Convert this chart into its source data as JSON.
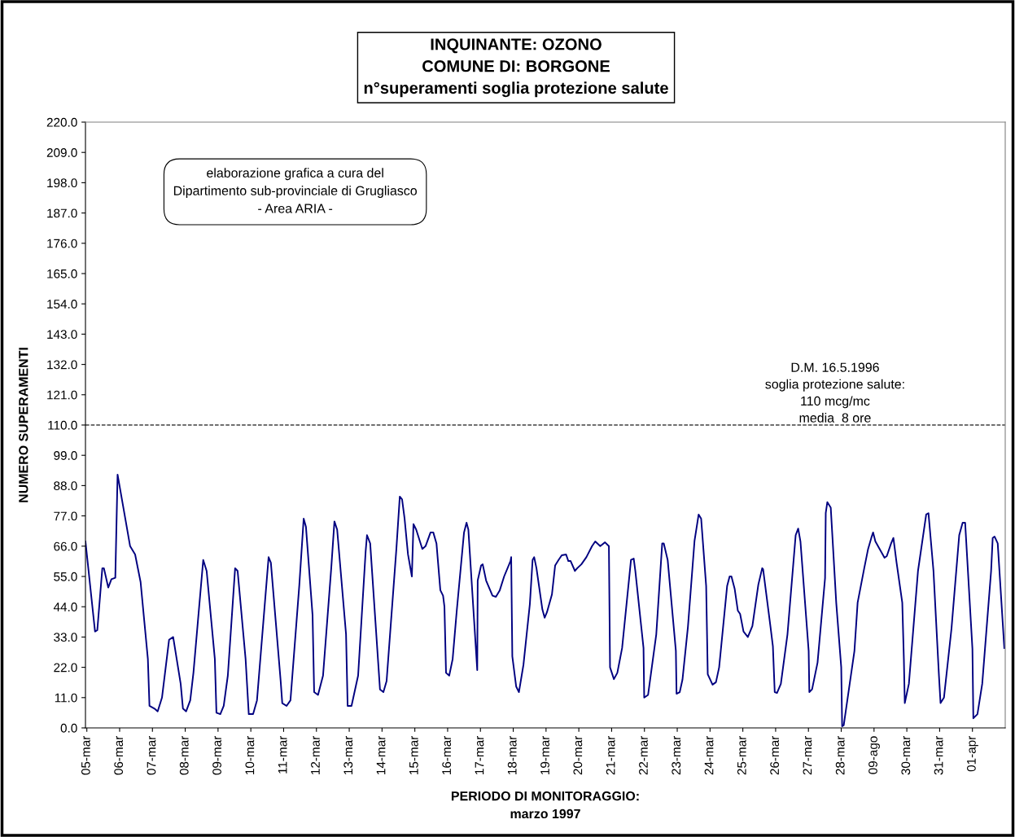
{
  "chart_data": {
    "type": "line",
    "title": "INQUINANTE: OZONO\nCOMUNE DI: BORGONE\nn°superamenti soglia protezione salute",
    "xlabel": "PERIODO DI MONITORAGGIO:\nmarzo 1997",
    "ylabel": "NUMERO SUPERAMENTI",
    "annotations": [
      "elaborazione grafica a cura del\nDipartimento sub-provinciale di Grugliasco\n- Area ARIA -"
    ],
    "ref_lines": [
      {
        "axis": "y",
        "value": 110,
        "label": "D.M. 16.5.1996\nsoglia protezione salute:\n110 mcg/mc\nmedia  8 ore",
        "color": "#404040",
        "line_style": "dashed"
      }
    ],
    "xlim": [
      "1997-03-04T23:00",
      "1997-04-02T00:00"
    ],
    "ylim": [
      0,
      220
    ],
    "xticks": [
      {
        "value": "1997-03-05",
        "label": "05-mar"
      },
      {
        "value": "1997-03-06",
        "label": "06-mar"
      },
      {
        "value": "1997-03-07",
        "label": "07-mar"
      },
      {
        "value": "1997-03-08",
        "label": "08-mar"
      },
      {
        "value": "1997-03-09",
        "label": "09-mar"
      },
      {
        "value": "1997-03-10",
        "label": "10-mar"
      },
      {
        "value": "1997-03-11",
        "label": "11-mar"
      },
      {
        "value": "1997-03-12",
        "label": "12-mar"
      },
      {
        "value": "1997-03-13",
        "label": "13-mar"
      },
      {
        "value": "1997-03-14",
        "label": "14-mar"
      },
      {
        "value": "1997-03-15",
        "label": "15-mar"
      },
      {
        "value": "1997-03-16",
        "label": "16-mar"
      },
      {
        "value": "1997-03-17",
        "label": "17-mar"
      },
      {
        "value": "1997-03-18",
        "label": "18-mar"
      },
      {
        "value": "1997-03-19",
        "label": "19-mar"
      },
      {
        "value": "1997-03-20",
        "label": "20-mar"
      },
      {
        "value": "1997-03-21",
        "label": "21-mar"
      },
      {
        "value": "1997-03-22",
        "label": "22-mar"
      },
      {
        "value": "1997-03-23",
        "label": "23-mar"
      },
      {
        "value": "1997-03-24",
        "label": "24-mar"
      },
      {
        "value": "1997-03-25",
        "label": "25-mar"
      },
      {
        "value": "1997-03-26",
        "label": "26-mar"
      },
      {
        "value": "1997-03-27",
        "label": "27-mar"
      },
      {
        "value": "1997-03-28",
        "label": "28-mar"
      },
      {
        "value": "1997-03-29",
        "label": "09-ago"
      },
      {
        "value": "1997-03-30",
        "label": "30-mar"
      },
      {
        "value": "1997-03-31",
        "label": "31-mar"
      },
      {
        "value": "1997-04-01",
        "label": "01-apr"
      }
    ],
    "yticks": [
      {
        "value": 0,
        "label": "0.0"
      },
      {
        "value": 11,
        "label": "11.0"
      },
      {
        "value": 22,
        "label": "22.0"
      },
      {
        "value": 33,
        "label": "33.0"
      },
      {
        "value": 44,
        "label": "44.0"
      },
      {
        "value": 55,
        "label": "55.0"
      },
      {
        "value": 66,
        "label": "66.0"
      },
      {
        "value": 77,
        "label": "77.0"
      },
      {
        "value": 88,
        "label": "88.0"
      },
      {
        "value": 99,
        "label": "99.0"
      },
      {
        "value": 110,
        "label": "110.0"
      },
      {
        "value": 121,
        "label": "121.0"
      },
      {
        "value": 132,
        "label": "132.0"
      },
      {
        "value": 143,
        "label": "143.0"
      },
      {
        "value": 154,
        "label": "154.0"
      },
      {
        "value": 165,
        "label": "165.0"
      },
      {
        "value": 176,
        "label": "176.0"
      },
      {
        "value": 187,
        "label": "187.0"
      },
      {
        "value": 198,
        "label": "198.0"
      },
      {
        "value": 209,
        "label": "209.0"
      },
      {
        "value": 220,
        "label": "220.0"
      }
    ],
    "grid": false,
    "legend": false,
    "marker": "none",
    "line_style": "solid",
    "series": [
      {
        "color": "#000080",
        "x": [
          "1997-03-04T23:00",
          "1997-03-05T06:00",
          "1997-03-05T07:40",
          "1997-03-05T11:20",
          "1997-03-05T12:30",
          "1997-03-05T15:40",
          "1997-03-05T18:00",
          "1997-03-05T20:50",
          "1997-03-05T22:30",
          "1997-03-06T04:30",
          "1997-03-06T07:40",
          "1997-03-06T11:20",
          "1997-03-06T15:20",
          "1997-03-06T20:40",
          "1997-03-06T21:50",
          "1997-03-07T01:30",
          "1997-03-07T03:50",
          "1997-03-07T07:00",
          "1997-03-07T12:10",
          "1997-03-07T15:10",
          "1997-03-07T20:40",
          "1997-03-07T22:20",
          "1997-03-08T00:40",
          "1997-03-08T03:40",
          "1997-03-08T06:00",
          "1997-03-08T13:10",
          "1997-03-08T15:40",
          "1997-03-08T21:40",
          "1997-03-08T22:50",
          "1997-03-09T01:40",
          "1997-03-09T04:10",
          "1997-03-09T07:10",
          "1997-03-09T12:30",
          "1997-03-09T14:20",
          "1997-03-09T20:10",
          "1997-03-09T22:30",
          "1997-03-10T01:40",
          "1997-03-10T04:30",
          "1997-03-10T13:00",
          "1997-03-10T14:40",
          "1997-03-10T21:50",
          "1997-03-10T23:00",
          "1997-03-11T02:10",
          "1997-03-11T05:00",
          "1997-03-11T11:30",
          "1997-03-11T14:40",
          "1997-03-11T16:20",
          "1997-03-11T21:10",
          "1997-03-11T22:20",
          "1997-03-12T01:10",
          "1997-03-12T04:50",
          "1997-03-12T10:50",
          "1997-03-12T13:10",
          "1997-03-12T15:10",
          "1997-03-12T21:40",
          "1997-03-12T22:50",
          "1997-03-13T01:40",
          "1997-03-13T06:30",
          "1997-03-13T12:00",
          "1997-03-13T13:00",
          "1997-03-13T15:20",
          "1997-03-13T22:30",
          "1997-03-14T01:00",
          "1997-03-14T03:20",
          "1997-03-14T10:30",
          "1997-03-14T13:00",
          "1997-03-14T14:40",
          "1997-03-14T16:30",
          "1997-03-14T19:00",
          "1997-03-14T21:50",
          "1997-03-14T23:00",
          "1997-03-15T01:00",
          "1997-03-15T05:30",
          "1997-03-15T07:50",
          "1997-03-15T11:30",
          "1997-03-15T13:30",
          "1997-03-15T15:50",
          "1997-03-15T18:40",
          "1997-03-15T20:40",
          "1997-03-15T21:40",
          "1997-03-15T22:50",
          "1997-03-16T01:10",
          "1997-03-16T03:40",
          "1997-03-16T06:40",
          "1997-03-16T12:00",
          "1997-03-16T13:50",
          "1997-03-16T15:10",
          "1997-03-16T21:40",
          "1997-03-16T22:00",
          "1997-03-17T00:30",
          "1997-03-17T01:40",
          "1997-03-17T04:10",
          "1997-03-17T08:50",
          "1997-03-17T11:20",
          "1997-03-17T14:10",
          "1997-03-17T17:20",
          "1997-03-17T22:00",
          "1997-03-17T22:30",
          "1997-03-17T23:20",
          "1997-03-18T02:10",
          "1997-03-18T04:10",
          "1997-03-18T07:30",
          "1997-03-18T12:10",
          "1997-03-18T14:10",
          "1997-03-18T15:20",
          "1997-03-18T17:00",
          "1997-03-18T21:20",
          "1997-03-18T23:00",
          "1997-03-19T00:40",
          "1997-03-19T04:20",
          "1997-03-19T06:40",
          "1997-03-19T09:10",
          "1997-03-19T11:30",
          "1997-03-19T14:40",
          "1997-03-19T16:20",
          "1997-03-19T18:00",
          "1997-03-19T21:10",
          "1997-03-19T22:50",
          "1997-03-20T01:50",
          "1997-03-20T05:30",
          "1997-03-20T09:40",
          "1997-03-20T12:00",
          "1997-03-20T15:40",
          "1997-03-20T19:10",
          "1997-03-20T22:00",
          "1997-03-20T22:50",
          "1997-03-21T01:40",
          "1997-03-21T04:10",
          "1997-03-21T07:40",
          "1997-03-21T14:10",
          "1997-03-21T16:10",
          "1997-03-21T17:20",
          "1997-03-21T23:20",
          "1997-03-21T23:50",
          "1997-03-22T02:40",
          "1997-03-22T08:40",
          "1997-03-22T13:00",
          "1997-03-22T14:10",
          "1997-03-22T17:00",
          "1997-03-22T23:00",
          "1997-03-22T23:30",
          "1997-03-23T01:50",
          "1997-03-23T03:50",
          "1997-03-23T07:50",
          "1997-03-23T12:40",
          "1997-03-23T15:40",
          "1997-03-23T17:30",
          "1997-03-23T21:10",
          "1997-03-23T22:20",
          "1997-03-24T01:50",
          "1997-03-24T04:20",
          "1997-03-24T06:40",
          "1997-03-24T12:30",
          "1997-03-24T14:20",
          "1997-03-24T15:40",
          "1997-03-24T18:00",
          "1997-03-24T20:20",
          "1997-03-24T22:00",
          "1997-03-25T00:30",
          "1997-03-25T03:40",
          "1997-03-25T07:00",
          "1997-03-25T11:20",
          "1997-03-25T14:10",
          "1997-03-25T14:50",
          "1997-03-25T20:10",
          "1997-03-25T22:00",
          "1997-03-25T23:20",
          "1997-03-26T01:00",
          "1997-03-26T03:50",
          "1997-03-26T08:40",
          "1997-03-26T14:40",
          "1997-03-26T16:30",
          "1997-03-26T18:10",
          "1997-03-27T00:10",
          "1997-03-27T00:40",
          "1997-03-27T02:40",
          "1997-03-27T06:40",
          "1997-03-27T12:10",
          "1997-03-27T12:40",
          "1997-03-27T13:50",
          "1997-03-27T16:20",
          "1997-03-27T20:20",
          "1997-03-28T00:00",
          "1997-03-28T00:40",
          "1997-03-28T01:50",
          "1997-03-28T09:40",
          "1997-03-28T12:00",
          "1997-03-28T16:50",
          "1997-03-28T19:40",
          "1997-03-28T22:00",
          "1997-03-28T23:20",
          "1997-03-29T01:00",
          "1997-03-29T07:40",
          "1997-03-29T09:20",
          "1997-03-29T12:30",
          "1997-03-29T14:10",
          "1997-03-29T16:30",
          "1997-03-29T20:40",
          "1997-03-29T21:50",
          "1997-03-29T22:30",
          "1997-03-30T01:30",
          "1997-03-30T08:10",
          "1997-03-30T14:10",
          "1997-03-30T15:50",
          "1997-03-30T19:30",
          "1997-03-30T23:30",
          "1997-03-31T00:40",
          "1997-03-31T03:10",
          "1997-03-31T08:40",
          "1997-03-31T14:20",
          "1997-03-31T16:50",
          "1997-03-31T18:40",
          "1997-04-01T00:00",
          "1997-04-01T00:40",
          "1997-04-01T03:40",
          "1997-04-01T07:10",
          "1997-04-01T13:40",
          "1997-04-01T14:50",
          "1997-04-01T16:10",
          "1997-04-01T18:30",
          "1997-04-01T23:20"
        ],
        "values": [
          67.7,
          35,
          35.5,
          58,
          58,
          51,
          54,
          54.5,
          92,
          75,
          66,
          63,
          53,
          25,
          8,
          7,
          6,
          11,
          32,
          33,
          16,
          7,
          6,
          10,
          20,
          61,
          57,
          25,
          5.5,
          5,
          8,
          19,
          58,
          57,
          25,
          5,
          5,
          10,
          62,
          60,
          17,
          9,
          8,
          10,
          52,
          76,
          73,
          41,
          13,
          12,
          19,
          58,
          75,
          72,
          34,
          8,
          8,
          19,
          64,
          70,
          67,
          14,
          13,
          17,
          65,
          84,
          83,
          76,
          63,
          55,
          74,
          72,
          65,
          66,
          71,
          71,
          67,
          50,
          48,
          44,
          20,
          19,
          25,
          42.5,
          71,
          74.5,
          72,
          21,
          53.5,
          59,
          59.4,
          53.5,
          48,
          47.6,
          50,
          55,
          60.6,
          62,
          26,
          15,
          13,
          23,
          45,
          61,
          62,
          58,
          43,
          40,
          42,
          48.5,
          59,
          61,
          62.7,
          63,
          60.6,
          60.6,
          57,
          58,
          59.4,
          62,
          66,
          67.7,
          66,
          67.4,
          66,
          22,
          17.7,
          20,
          29,
          61,
          61.5,
          57,
          29,
          11,
          12,
          34,
          67,
          67,
          61,
          28,
          12.4,
          13,
          17.5,
          36.7,
          68,
          77.5,
          76,
          51.5,
          19.5,
          15.7,
          16.6,
          22,
          51.5,
          55,
          55,
          50.6,
          42.6,
          41.4,
          35,
          33,
          37,
          52,
          58,
          57.6,
          37,
          29.6,
          13,
          12.7,
          16,
          34,
          70,
          72.4,
          67.7,
          28,
          13,
          14,
          23.7,
          54.4,
          78,
          82,
          80,
          45.5,
          22,
          0.6,
          1,
          28,
          45.5,
          58,
          65,
          69,
          71,
          67.7,
          61.8,
          62.4,
          67,
          69,
          60,
          45.5,
          25,
          9,
          16,
          57,
          77.5,
          78,
          57,
          19,
          9,
          11,
          36,
          70,
          74.5,
          74.5,
          28.7,
          3.5,
          5,
          16,
          57,
          69,
          69.5,
          67,
          29
        ]
      }
    ]
  }
}
